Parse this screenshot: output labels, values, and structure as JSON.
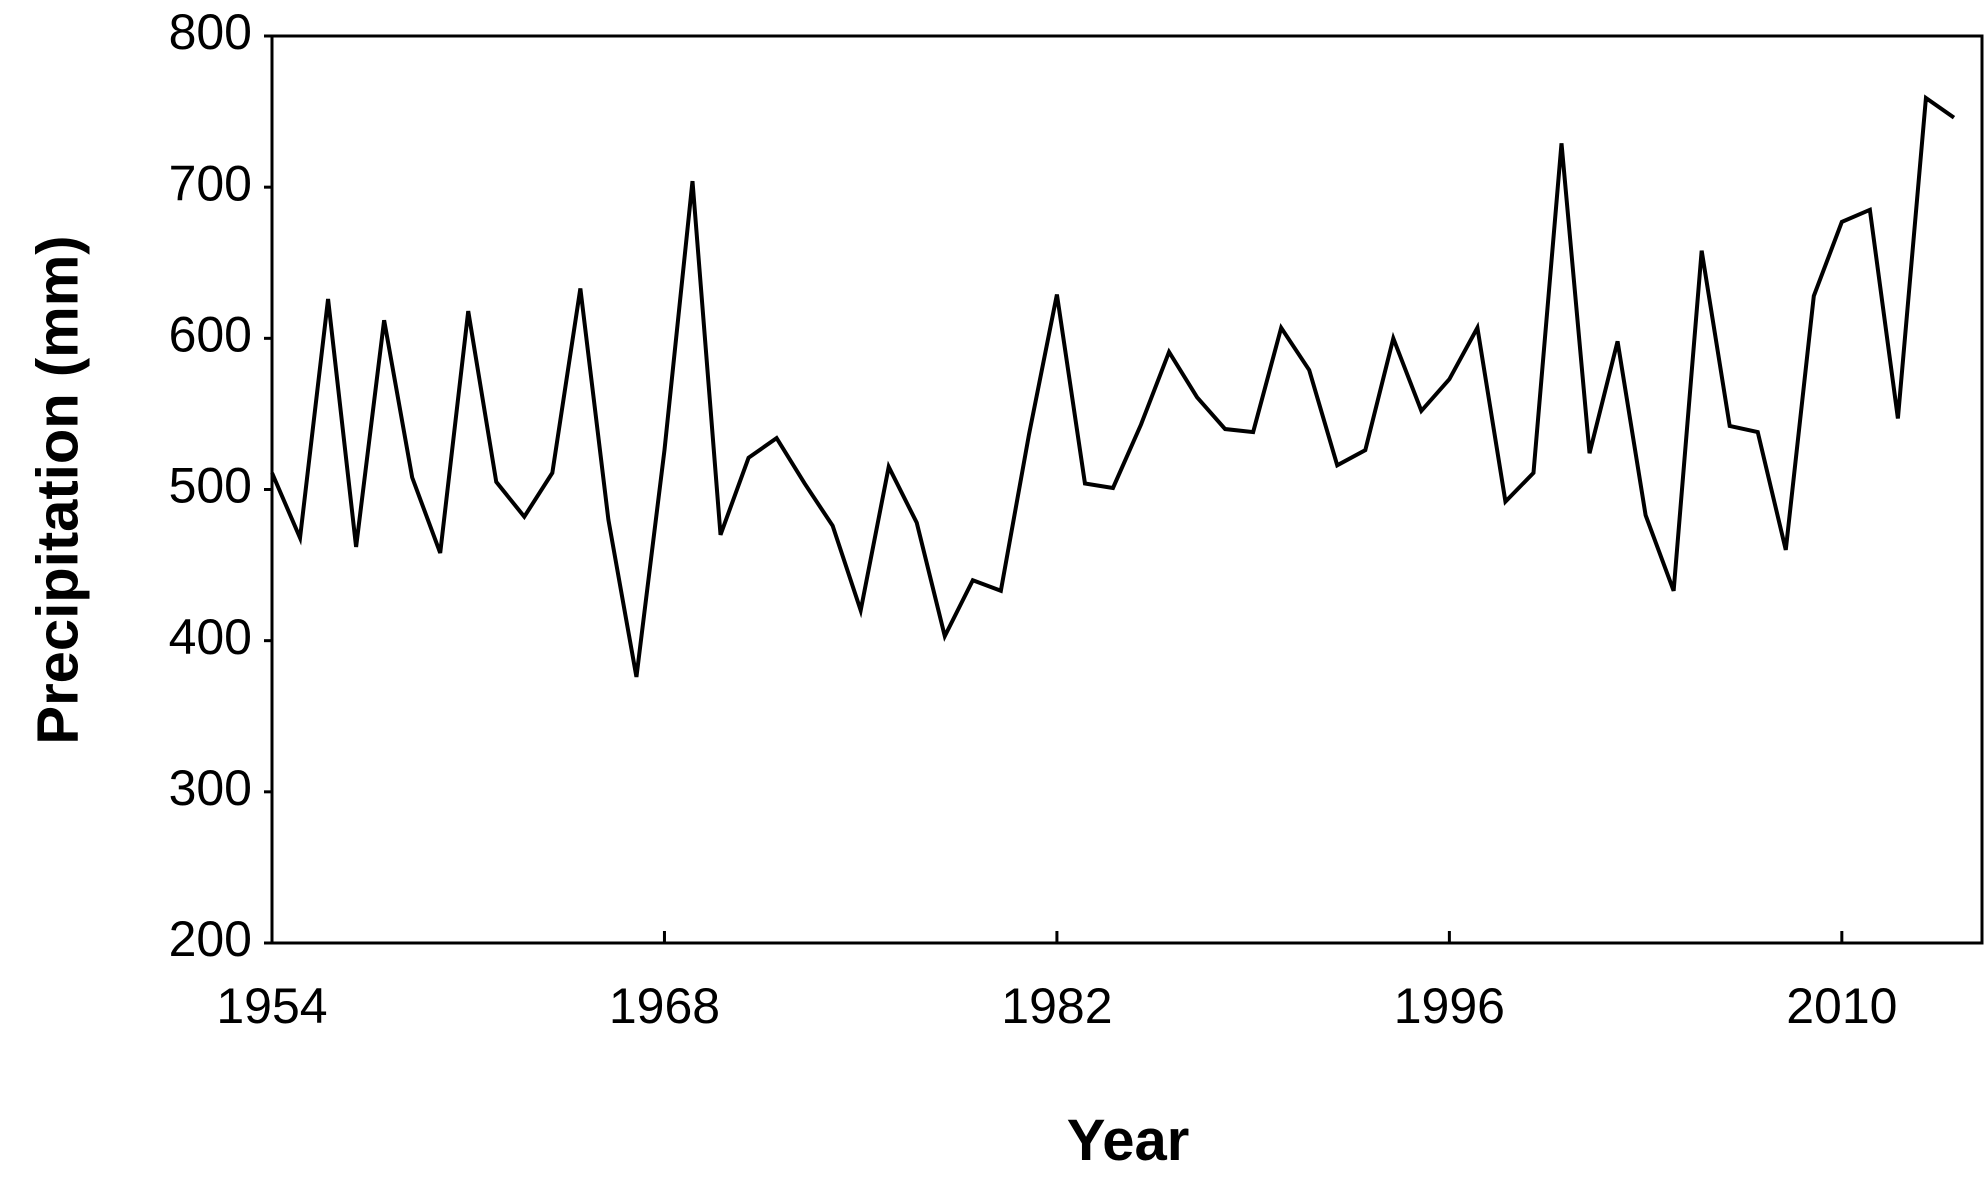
{
  "chart_data": {
    "type": "line",
    "x_label": "Year",
    "y_label": "Precipitation (mm)",
    "x": [
      1954,
      1955,
      1956,
      1957,
      1958,
      1959,
      1960,
      1961,
      1962,
      1963,
      1964,
      1965,
      1966,
      1967,
      1968,
      1969,
      1970,
      1971,
      1972,
      1973,
      1974,
      1975,
      1976,
      1977,
      1978,
      1979,
      1980,
      1981,
      1982,
      1983,
      1984,
      1985,
      1986,
      1987,
      1988,
      1989,
      1990,
      1991,
      1992,
      1993,
      1994,
      1995,
      1996,
      1997,
      1998,
      1999,
      2000,
      2001,
      2002,
      2003,
      2004,
      2005,
      2006,
      2007,
      2008,
      2009,
      2010,
      2011,
      2012,
      2013,
      2014
    ],
    "values": [
      511,
      468,
      626,
      462,
      612,
      508,
      458,
      618,
      505,
      482,
      511,
      633,
      480,
      376,
      526,
      704,
      470,
      521,
      534,
      504,
      476,
      420,
      515,
      478,
      403,
      440,
      433,
      536,
      629,
      504,
      501,
      543,
      591,
      561,
      540,
      538,
      607,
      579,
      516,
      526,
      600,
      552,
      573,
      607,
      492,
      511,
      729,
      524,
      598,
      483,
      433,
      658,
      542,
      538,
      460,
      628,
      677,
      685,
      547,
      759,
      746
    ],
    "color": "#000000",
    "xlim": [
      1954,
      2015
    ],
    "xticks": [
      1954,
      1968,
      1982,
      1996,
      2010
    ],
    "ylim": [
      200,
      800
    ],
    "yticks": [
      200,
      300,
      400,
      500,
      600,
      700,
      800
    ]
  }
}
